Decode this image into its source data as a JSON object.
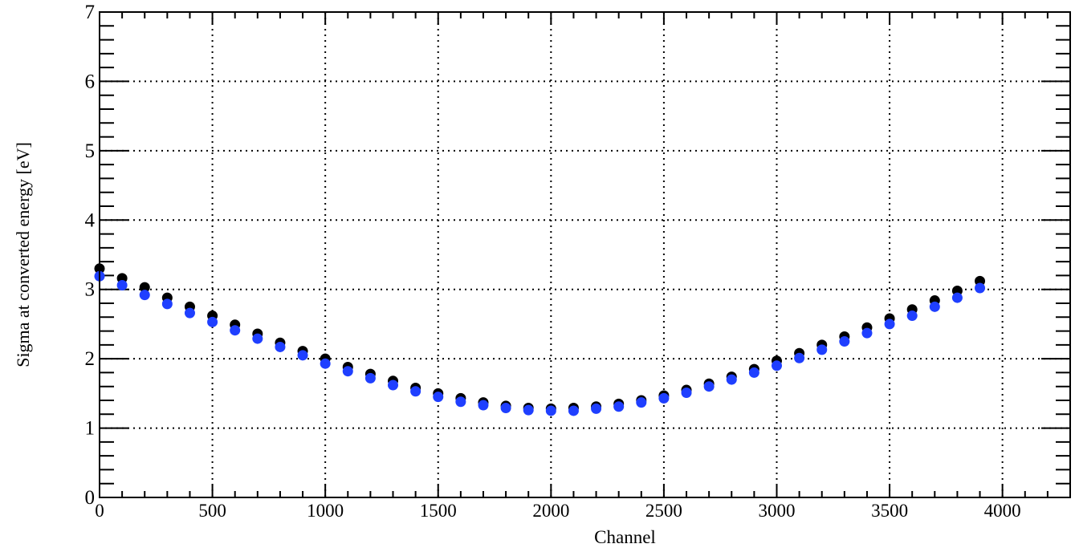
{
  "chart_data": {
    "type": "scatter",
    "xlabel": "Channel",
    "ylabel": "Sigma at converted energy [eV]",
    "xlim": [
      0,
      4300
    ],
    "ylim": [
      0,
      7
    ],
    "x_ticks": [
      0,
      500,
      1000,
      1500,
      2000,
      2500,
      3000,
      3500,
      4000
    ],
    "x_tick_labels": [
      "0",
      "500",
      "1000",
      "1500",
      "2000",
      "2500",
      "3000",
      "3500",
      "4000"
    ],
    "y_ticks": [
      0,
      1,
      2,
      3,
      4,
      5,
      6,
      7
    ],
    "y_tick_labels": [
      "0",
      "1",
      "2",
      "3",
      "4",
      "5",
      "6",
      "7"
    ],
    "grid": true,
    "series": [
      {
        "color": "#000000",
        "x": [
          0,
          100,
          200,
          300,
          400,
          500,
          600,
          700,
          800,
          900,
          1000,
          1100,
          1200,
          1300,
          1400,
          1500,
          1600,
          1700,
          1800,
          1900,
          2000,
          2100,
          2200,
          2300,
          2400,
          2500,
          2600,
          2700,
          2800,
          2900,
          3000,
          3100,
          3200,
          3300,
          3400,
          3500,
          3600,
          3700,
          3800,
          3900
        ],
        "y": [
          3.3,
          3.16,
          3.03,
          2.88,
          2.75,
          2.62,
          2.49,
          2.36,
          2.23,
          2.11,
          2.0,
          1.88,
          1.78,
          1.68,
          1.58,
          1.5,
          1.43,
          1.37,
          1.32,
          1.29,
          1.28,
          1.29,
          1.31,
          1.35,
          1.4,
          1.47,
          1.55,
          1.64,
          1.74,
          1.85,
          1.97,
          2.08,
          2.2,
          2.32,
          2.45,
          2.58,
          2.71,
          2.84,
          2.98,
          3.12
        ]
      },
      {
        "color": "#1f3fff",
        "x": [
          0,
          100,
          200,
          300,
          400,
          500,
          600,
          700,
          800,
          900,
          1000,
          1100,
          1200,
          1300,
          1400,
          1500,
          1600,
          1700,
          1800,
          1900,
          2000,
          2100,
          2200,
          2300,
          2400,
          2500,
          2600,
          2700,
          2800,
          2900,
          3000,
          3100,
          3200,
          3300,
          3400,
          3500,
          3600,
          3700,
          3800,
          3900
        ],
        "y": [
          3.19,
          3.06,
          2.92,
          2.79,
          2.66,
          2.53,
          2.41,
          2.29,
          2.17,
          2.05,
          1.93,
          1.82,
          1.72,
          1.62,
          1.53,
          1.45,
          1.38,
          1.33,
          1.29,
          1.26,
          1.25,
          1.25,
          1.28,
          1.31,
          1.37,
          1.43,
          1.51,
          1.6,
          1.7,
          1.8,
          1.9,
          2.01,
          2.13,
          2.25,
          2.37,
          2.5,
          2.62,
          2.75,
          2.88,
          3.02
        ]
      }
    ]
  }
}
